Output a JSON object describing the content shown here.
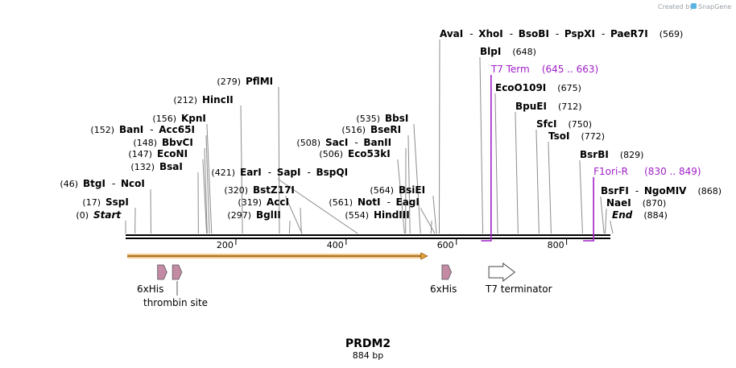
{
  "credit": {
    "text": "Created by",
    "brand": "SnapGene"
  },
  "title": "PRDM2",
  "length_label": "884 bp",
  "axis_ticks": [
    {
      "label": "200",
      "bp": 200
    },
    {
      "label": "400",
      "bp": 400
    },
    {
      "label": "600",
      "bp": 600
    },
    {
      "label": "800",
      "bp": 800
    }
  ],
  "sites": [
    {
      "pos": "(569)",
      "names": [
        "AvaI",
        "XhoI",
        "BsoBI",
        "PspXI",
        "PaeR7I"
      ],
      "bp": 569
    },
    {
      "pos": "(648)",
      "names": [
        "BlpI"
      ],
      "bp": 648
    },
    {
      "pos": "(675)",
      "names": [
        "EcoO109I"
      ],
      "bp": 675
    },
    {
      "pos": "(712)",
      "names": [
        "BpuEI"
      ],
      "bp": 712
    },
    {
      "pos": "(750)",
      "names": [
        "SfcI"
      ],
      "bp": 750
    },
    {
      "pos": "(772)",
      "names": [
        "TsoI"
      ],
      "bp": 772
    },
    {
      "pos": "(829)",
      "names": [
        "BsrBI"
      ],
      "bp": 829
    },
    {
      "pos": "(868)",
      "names": [
        "BsrFI",
        "NgoMIV"
      ],
      "bp": 868
    },
    {
      "pos": "(870)",
      "names": [
        "NaeI"
      ],
      "bp": 870
    },
    {
      "pos": "(884)",
      "names": [
        "End"
      ],
      "bp": 884,
      "italic": true
    },
    {
      "pos": "(279)",
      "names": [
        "PflMI"
      ],
      "bp": 279
    },
    {
      "pos": "(212)",
      "names": [
        "HincII"
      ],
      "bp": 212
    },
    {
      "pos": "(156)",
      "names": [
        "KpnI"
      ],
      "bp": 156
    },
    {
      "pos": "(152)",
      "names": [
        "BanI",
        "Acc65I"
      ],
      "bp": 152
    },
    {
      "pos": "(148)",
      "names": [
        "BbvCI"
      ],
      "bp": 148
    },
    {
      "pos": "(147)",
      "names": [
        "EcoNI"
      ],
      "bp": 147
    },
    {
      "pos": "(132)",
      "names": [
        "BsaI"
      ],
      "bp": 132
    },
    {
      "pos": "(46)",
      "names": [
        "BtgI",
        "NcoI"
      ],
      "bp": 46
    },
    {
      "pos": "(17)",
      "names": [
        "SspI"
      ],
      "bp": 17
    },
    {
      "pos": "(0)",
      "names": [
        "Start"
      ],
      "bp": 0,
      "italic": true
    },
    {
      "pos": "(421)",
      "names": [
        "EarI",
        "SapI",
        "BspQI"
      ],
      "bp": 421
    },
    {
      "pos": "(320)",
      "names": [
        "BstZ17I"
      ],
      "bp": 320
    },
    {
      "pos": "(319)",
      "names": [
        "AccI"
      ],
      "bp": 319
    },
    {
      "pos": "(297)",
      "names": [
        "BglII"
      ],
      "bp": 297
    },
    {
      "pos": "(535)",
      "names": [
        "BbsI"
      ],
      "bp": 535
    },
    {
      "pos": "(516)",
      "names": [
        "BseRI"
      ],
      "bp": 516
    },
    {
      "pos": "(508)",
      "names": [
        "SacI",
        "BanII"
      ],
      "bp": 508
    },
    {
      "pos": "(506)",
      "names": [
        "Eco53kI"
      ],
      "bp": 506
    },
    {
      "pos": "(564)",
      "names": [
        "BsiEI"
      ],
      "bp": 564
    },
    {
      "pos": "(561)",
      "names": [
        "NotI",
        "EagI"
      ],
      "bp": 561
    },
    {
      "pos": "(554)",
      "names": [
        "HindIII"
      ],
      "bp": 554
    }
  ],
  "primers": [
    {
      "name": "T7 Term",
      "range": "(645 .. 663)",
      "start": 645,
      "end": 663
    },
    {
      "name": "F1ori-R",
      "range": "(830 .. 849)",
      "start": 830,
      "end": 849
    }
  ],
  "features": [
    {
      "label": "6xHis",
      "type": "tag",
      "start": 58,
      "end": 75
    },
    {
      "label": "thrombin site",
      "type": "site",
      "start": 85,
      "end": 102
    },
    {
      "label": "6xHis",
      "type": "tag",
      "start": 574,
      "end": 591
    },
    {
      "label": "T7 terminator",
      "type": "terminator",
      "start": 659,
      "end": 706
    }
  ],
  "orf": {
    "start": 0,
    "end": 546,
    "direction": "forward"
  },
  "colors": {
    "backbone": "#000000",
    "leader_line": "#8c8c8c",
    "primer": "#a020c8",
    "orf_fill": "#e9a33a",
    "orf_edge": "#8a5a12",
    "his_tag": "#c48aa4",
    "terminator": "#ffffff"
  }
}
